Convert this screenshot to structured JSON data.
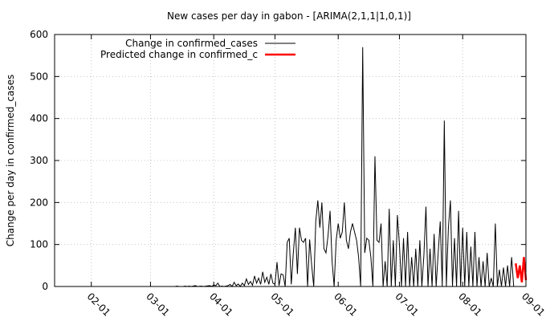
{
  "chart_data": {
    "type": "line",
    "title": "New cases per day in gabon -  [ARIMA(2,1,1|1,0,1)]",
    "xlabel": "",
    "ylabel": "Change per day in confirmed_cases",
    "ylim": [
      0,
      600
    ],
    "yticks": [
      "0",
      "100",
      "200",
      "300",
      "400",
      "500",
      "600"
    ],
    "xlim": [
      "2020-01-14",
      "2020-09-01"
    ],
    "xticks": [
      {
        "date": "2020-02-01",
        "label": "02-01"
      },
      {
        "date": "2020-03-01",
        "label": "03-01"
      },
      {
        "date": "2020-04-01",
        "label": "04-01"
      },
      {
        "date": "2020-05-01",
        "label": "05-01"
      },
      {
        "date": "2020-06-01",
        "label": "06-01"
      },
      {
        "date": "2020-07-01",
        "label": "07-01"
      },
      {
        "date": "2020-08-01",
        "label": "08-01"
      },
      {
        "date": "2020-09-01",
        "label": "09-01"
      }
    ],
    "grid": true,
    "legend_position": "top-left",
    "series": [
      {
        "name": "Change in confirmed_cases",
        "color": "#000000",
        "points": [
          [
            "2020-03-13",
            0
          ],
          [
            "2020-03-14",
            1
          ],
          [
            "2020-03-15",
            0
          ],
          [
            "2020-03-17",
            0
          ],
          [
            "2020-03-18",
            1
          ],
          [
            "2020-03-19",
            0
          ],
          [
            "2020-03-20",
            1
          ],
          [
            "2020-03-21",
            0
          ],
          [
            "2020-03-23",
            2
          ],
          [
            "2020-03-24",
            0
          ],
          [
            "2020-03-26",
            1
          ],
          [
            "2020-03-27",
            0
          ],
          [
            "2020-03-30",
            2
          ],
          [
            "2020-03-31",
            0
          ],
          [
            "2020-04-01",
            4
          ],
          [
            "2020-04-02",
            2
          ],
          [
            "2020-04-03",
            8
          ],
          [
            "2020-04-04",
            0
          ],
          [
            "2020-04-05",
            1
          ],
          [
            "2020-04-06",
            0
          ],
          [
            "2020-04-08",
            2
          ],
          [
            "2020-04-09",
            5
          ],
          [
            "2020-04-10",
            0
          ],
          [
            "2020-04-11",
            10
          ],
          [
            "2020-04-12",
            2
          ],
          [
            "2020-04-13",
            6
          ],
          [
            "2020-04-14",
            0
          ],
          [
            "2020-04-15",
            8
          ],
          [
            "2020-04-16",
            2
          ],
          [
            "2020-04-17",
            18
          ],
          [
            "2020-04-18",
            5
          ],
          [
            "2020-04-19",
            12
          ],
          [
            "2020-04-20",
            3
          ],
          [
            "2020-04-21",
            25
          ],
          [
            "2020-04-22",
            8
          ],
          [
            "2020-04-23",
            20
          ],
          [
            "2020-04-24",
            5
          ],
          [
            "2020-04-25",
            35
          ],
          [
            "2020-04-26",
            10
          ],
          [
            "2020-04-27",
            22
          ],
          [
            "2020-04-28",
            5
          ],
          [
            "2020-04-29",
            30
          ],
          [
            "2020-04-30",
            8
          ],
          [
            "2020-05-01",
            5
          ],
          [
            "2020-05-02",
            58
          ],
          [
            "2020-05-03",
            2
          ],
          [
            "2020-05-04",
            30
          ],
          [
            "2020-05-05",
            28
          ],
          [
            "2020-05-06",
            0
          ],
          [
            "2020-05-07",
            105
          ],
          [
            "2020-05-08",
            115
          ],
          [
            "2020-05-09",
            5
          ],
          [
            "2020-05-10",
            80
          ],
          [
            "2020-05-11",
            140
          ],
          [
            "2020-05-12",
            30
          ],
          [
            "2020-05-13",
            140
          ],
          [
            "2020-05-14",
            110
          ],
          [
            "2020-05-15",
            105
          ],
          [
            "2020-05-16",
            115
          ],
          [
            "2020-05-17",
            0
          ],
          [
            "2020-05-18",
            112
          ],
          [
            "2020-05-19",
            50
          ],
          [
            "2020-05-20",
            0
          ],
          [
            "2020-05-21",
            155
          ],
          [
            "2020-05-22",
            205
          ],
          [
            "2020-05-23",
            140
          ],
          [
            "2020-05-24",
            200
          ],
          [
            "2020-05-25",
            90
          ],
          [
            "2020-05-26",
            80
          ],
          [
            "2020-05-27",
            120
          ],
          [
            "2020-05-28",
            180
          ],
          [
            "2020-05-29",
            60
          ],
          [
            "2020-05-30",
            0
          ],
          [
            "2020-05-31",
            110
          ],
          [
            "2020-06-01",
            150
          ],
          [
            "2020-06-02",
            115
          ],
          [
            "2020-06-03",
            130
          ],
          [
            "2020-06-04",
            200
          ],
          [
            "2020-06-05",
            110
          ],
          [
            "2020-06-06",
            90
          ],
          [
            "2020-06-07",
            130
          ],
          [
            "2020-06-08",
            150
          ],
          [
            "2020-06-09",
            130
          ],
          [
            "2020-06-10",
            110
          ],
          [
            "2020-06-11",
            70
          ],
          [
            "2020-06-12",
            0
          ],
          [
            "2020-06-13",
            570
          ],
          [
            "2020-06-14",
            80
          ],
          [
            "2020-06-15",
            115
          ],
          [
            "2020-06-16",
            110
          ],
          [
            "2020-06-17",
            70
          ],
          [
            "2020-06-18",
            0
          ],
          [
            "2020-06-19",
            310
          ],
          [
            "2020-06-20",
            110
          ],
          [
            "2020-06-21",
            105
          ],
          [
            "2020-06-22",
            150
          ],
          [
            "2020-06-23",
            0
          ],
          [
            "2020-06-24",
            60
          ],
          [
            "2020-06-25",
            0
          ],
          [
            "2020-06-26",
            185
          ],
          [
            "2020-06-27",
            0
          ],
          [
            "2020-06-28",
            110
          ],
          [
            "2020-06-29",
            0
          ],
          [
            "2020-06-30",
            170
          ],
          [
            "2020-07-01",
            100
          ],
          [
            "2020-07-02",
            0
          ],
          [
            "2020-07-03",
            115
          ],
          [
            "2020-07-04",
            0
          ],
          [
            "2020-07-05",
            130
          ],
          [
            "2020-07-06",
            0
          ],
          [
            "2020-07-07",
            70
          ],
          [
            "2020-07-08",
            0
          ],
          [
            "2020-07-09",
            90
          ],
          [
            "2020-07-10",
            0
          ],
          [
            "2020-07-11",
            110
          ],
          [
            "2020-07-12",
            0
          ],
          [
            "2020-07-13",
            75
          ],
          [
            "2020-07-14",
            190
          ],
          [
            "2020-07-15",
            0
          ],
          [
            "2020-07-16",
            90
          ],
          [
            "2020-07-17",
            0
          ],
          [
            "2020-07-18",
            125
          ],
          [
            "2020-07-19",
            0
          ],
          [
            "2020-07-20",
            80
          ],
          [
            "2020-07-21",
            155
          ],
          [
            "2020-07-22",
            0
          ],
          [
            "2020-07-23",
            395
          ],
          [
            "2020-07-24",
            0
          ],
          [
            "2020-07-25",
            140
          ],
          [
            "2020-07-26",
            205
          ],
          [
            "2020-07-27",
            0
          ],
          [
            "2020-07-28",
            115
          ],
          [
            "2020-07-29",
            0
          ],
          [
            "2020-07-30",
            180
          ],
          [
            "2020-07-31",
            0
          ],
          [
            "2020-08-01",
            140
          ],
          [
            "2020-08-02",
            0
          ],
          [
            "2020-08-03",
            130
          ],
          [
            "2020-08-04",
            0
          ],
          [
            "2020-08-05",
            95
          ],
          [
            "2020-08-06",
            0
          ],
          [
            "2020-08-07",
            130
          ],
          [
            "2020-08-08",
            0
          ],
          [
            "2020-08-09",
            70
          ],
          [
            "2020-08-10",
            0
          ],
          [
            "2020-08-11",
            60
          ],
          [
            "2020-08-12",
            0
          ],
          [
            "2020-08-13",
            80
          ],
          [
            "2020-08-14",
            0
          ],
          [
            "2020-08-15",
            20
          ],
          [
            "2020-08-16",
            0
          ],
          [
            "2020-08-17",
            150
          ],
          [
            "2020-08-18",
            0
          ],
          [
            "2020-08-19",
            40
          ],
          [
            "2020-08-20",
            0
          ],
          [
            "2020-08-21",
            45
          ],
          [
            "2020-08-22",
            0
          ],
          [
            "2020-08-23",
            50
          ],
          [
            "2020-08-24",
            0
          ],
          [
            "2020-08-25",
            70
          ],
          [
            "2020-08-26",
            0
          ]
        ]
      },
      {
        "name": "Predicted change in confirmed_c",
        "color": "#ff0000",
        "points": [
          [
            "2020-08-27",
            55
          ],
          [
            "2020-08-28",
            20
          ],
          [
            "2020-08-29",
            50
          ],
          [
            "2020-08-30",
            10
          ],
          [
            "2020-08-31",
            70
          ],
          [
            "2020-09-01",
            15
          ]
        ]
      }
    ]
  }
}
